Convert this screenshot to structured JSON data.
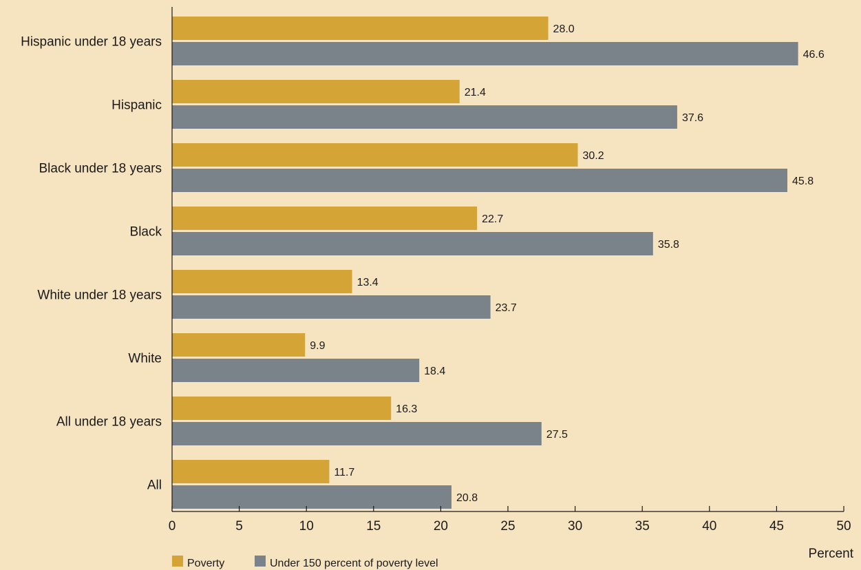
{
  "chart_data": {
    "type": "bar",
    "orientation": "horizontal",
    "title": "",
    "xlabel": "Percent",
    "ylabel": "",
    "xlim": [
      0,
      50
    ],
    "xticks": [
      0,
      5,
      10,
      15,
      20,
      25,
      30,
      35,
      40,
      45,
      50
    ],
    "grid": false,
    "legend_position": "bottom-left",
    "categories": [
      "Hispanic under 18 years",
      "Hispanic",
      "Black under 18 years",
      "Black",
      "White under 18 years",
      "White",
      "All under 18 years",
      "All"
    ],
    "series": [
      {
        "name": "Poverty",
        "color": "#d4a437",
        "values": [
          28.0,
          21.4,
          30.2,
          22.7,
          13.4,
          9.9,
          16.3,
          11.7
        ],
        "labels": [
          "28.0",
          "21.4",
          "30.2",
          "22.7",
          "13.4",
          "9.9",
          "16.3",
          "11.7"
        ]
      },
      {
        "name": "Under 150 percent of poverty level",
        "color": "#7a828a",
        "values": [
          46.6,
          37.6,
          45.8,
          35.8,
          23.7,
          18.4,
          27.5,
          20.8
        ],
        "labels": [
          "46.6",
          "37.6",
          "45.8",
          "35.8",
          "23.7",
          "18.4",
          "27.5",
          "20.8"
        ]
      }
    ],
    "background_color": "#f6e3bf"
  }
}
